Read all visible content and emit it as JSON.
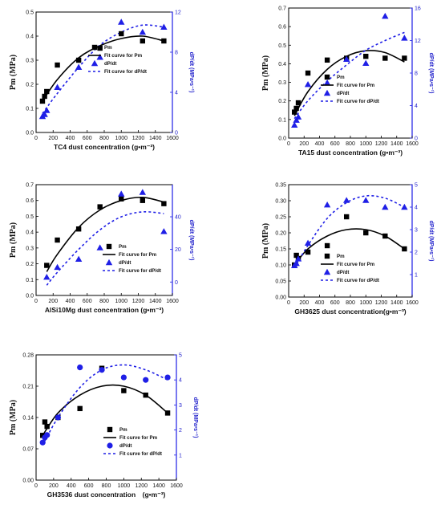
{
  "colors": {
    "pm": "#000000",
    "dpdt": "#1f1fe6"
  },
  "chart_data": [
    {
      "type": "scatter",
      "xlabel": "TC4 dust concentration (g•m⁻³)",
      "ylabel": "Pm (MPa)",
      "y2label": "dP/dt (MPa•s⁻¹)",
      "xlim": [
        0,
        1600
      ],
      "xticks": [
        0,
        200,
        400,
        600,
        800,
        1000,
        1200,
        1400,
        1600
      ],
      "ylim": [
        0,
        0.5
      ],
      "yticks": [
        0.0,
        0.1,
        0.2,
        0.3,
        0.4,
        0.5
      ],
      "y2lim": [
        0,
        12
      ],
      "y2ticks": [
        0,
        4,
        8,
        12
      ],
      "legend": [
        "Pm",
        "Fit curve for Pm",
        "dP/dt",
        "Fit curve for dP/dt"
      ],
      "legend_position": "right",
      "marker2": "triangle",
      "series": [
        {
          "name": "Pm",
          "x": [
            75,
            100,
            125,
            250,
            500,
            750,
            1000,
            1250,
            1500
          ],
          "y": [
            0.13,
            0.15,
            0.17,
            0.28,
            0.3,
            0.35,
            0.41,
            0.38,
            0.38
          ],
          "axis": "left"
        },
        {
          "name": "dP/dt",
          "x": [
            75,
            100,
            125,
            250,
            500,
            750,
            1000,
            1250,
            1500
          ],
          "y": [
            1.6,
            1.8,
            2.2,
            4.5,
            6.5,
            7.5,
            11.0,
            10.0,
            10.5
          ],
          "axis": "right"
        }
      ],
      "fits": [
        {
          "name": "Fit curve for Pm",
          "x": [
            75,
            250,
            500,
            750,
            1000,
            1250,
            1500
          ],
          "y": [
            0.13,
            0.22,
            0.31,
            0.36,
            0.39,
            0.4,
            0.38
          ],
          "axis": "left"
        },
        {
          "name": "Fit curve for dP/dt",
          "x": [
            75,
            250,
            500,
            750,
            1000,
            1250,
            1500
          ],
          "y": [
            1.9,
            3.9,
            6.5,
            8.7,
            10.0,
            10.7,
            10.5
          ],
          "axis": "right"
        }
      ]
    },
    {
      "type": "scatter",
      "xlabel": "TA15 dust concentration (g•m⁻³)",
      "ylabel": "Pm (MPa)",
      "y2label": "dP/dt (MPa•s⁻¹)",
      "xlim": [
        0,
        1600
      ],
      "xticks": [
        0,
        200,
        400,
        600,
        800,
        1000,
        1200,
        1400,
        1600
      ],
      "ylim": [
        0,
        0.7
      ],
      "yticks": [
        0.0,
        0.1,
        0.2,
        0.3,
        0.4,
        0.5,
        0.6,
        0.7
      ],
      "y2lim": [
        0,
        16
      ],
      "y2ticks": [
        0,
        4,
        8,
        12,
        16
      ],
      "legend": [
        "Pm",
        "Fit curve for Pm",
        "dP/dt",
        "Fit curve for dP/dt"
      ],
      "legend_position": "lower-right",
      "marker2": "triangle",
      "series": [
        {
          "name": "Pm",
          "x": [
            75,
            100,
            125,
            250,
            500,
            750,
            1000,
            1250,
            1500
          ],
          "y": [
            0.14,
            0.16,
            0.19,
            0.35,
            0.42,
            0.43,
            0.44,
            0.43,
            0.43
          ],
          "axis": "left"
        },
        {
          "name": "dP/dt",
          "x": [
            75,
            100,
            125,
            250,
            500,
            750,
            1000,
            1250,
            1500
          ],
          "y": [
            1.6,
            2.2,
            2.6,
            6.6,
            6.8,
            9.7,
            9.2,
            15.0,
            12.3
          ],
          "axis": "right"
        }
      ],
      "fits": [
        {
          "name": "Fit curve for Pm",
          "x": [
            75,
            250,
            500,
            750,
            1000,
            1250,
            1500
          ],
          "y": [
            0.12,
            0.25,
            0.37,
            0.44,
            0.47,
            0.46,
            0.41
          ],
          "axis": "left"
        },
        {
          "name": "Fit curve for dP/dt",
          "x": [
            75,
            250,
            500,
            750,
            1000,
            1250,
            1500
          ],
          "y": [
            2.4,
            4.6,
            7.0,
            9.0,
            10.8,
            12.0,
            13.0
          ],
          "axis": "right"
        }
      ]
    },
    {
      "type": "scatter",
      "xlabel": "AlSi10Mg dust concentration (g•m⁻³)",
      "ylabel": "Pm (MPa)",
      "y2label": "dP/dt (MPa•s⁻¹)",
      "xlim": [
        0,
        1600
      ],
      "xticks": [
        0,
        200,
        400,
        600,
        800,
        1000,
        1200,
        1400,
        1600
      ],
      "ylim": [
        0,
        0.7
      ],
      "yticks": [
        0.0,
        0.1,
        0.2,
        0.3,
        0.4,
        0.5,
        0.6,
        0.7
      ],
      "y2lim": [
        -8.24,
        59.7
      ],
      "y2ticks": [
        0,
        20,
        40
      ],
      "legend": [
        "Pm",
        "Fit curve for Pm",
        "dP/dt",
        "Fit curve for dP/dt"
      ],
      "legend_position": "lower-right",
      "marker2": "triangle",
      "series": [
        {
          "name": "Pm",
          "x": [
            125,
            250,
            500,
            750,
            1000,
            1250,
            1500
          ],
          "y": [
            0.19,
            0.35,
            0.42,
            0.56,
            0.61,
            0.6,
            0.58
          ],
          "axis": "left"
        },
        {
          "name": "dP/dt",
          "x": [
            125,
            250,
            500,
            750,
            1000,
            1250,
            1500
          ],
          "y": [
            3,
            9,
            14,
            21,
            54,
            55,
            31
          ],
          "axis": "right"
        }
      ],
      "fits": [
        {
          "name": "Fit curve for Pm",
          "x": [
            125,
            250,
            500,
            750,
            1000,
            1250,
            1500
          ],
          "y": [
            0.15,
            0.26,
            0.43,
            0.54,
            0.6,
            0.62,
            0.59
          ],
          "axis": "left"
        },
        {
          "name": "Fit curve for dP/dt",
          "x": [
            125,
            250,
            500,
            750,
            1000,
            1250,
            1500
          ],
          "y": [
            -2,
            6,
            20,
            32,
            40,
            43,
            42
          ],
          "axis": "right"
        }
      ]
    },
    {
      "type": "scatter",
      "xlabel": "GH3625 dust concentration(g•m⁻³)",
      "ylabel": "Pm (MPa)",
      "y2label": "dP/dt (MPa•s⁻¹)",
      "xlim": [
        0,
        1600
      ],
      "xticks": [
        0,
        200,
        400,
        600,
        800,
        1000,
        1200,
        1400,
        1600
      ],
      "ylim": [
        0,
        0.35
      ],
      "yticks": [
        0.0,
        0.05,
        0.1,
        0.15,
        0.2,
        0.25,
        0.3,
        0.35
      ],
      "y2lim": [
        0,
        5
      ],
      "y2ticks": [
        1,
        2,
        3,
        4,
        5
      ],
      "legend": [
        "Pm",
        "Fit curve for Pm",
        "dP/dt",
        "Fit curve for dP/dt"
      ],
      "legend_position": "lower-right",
      "marker2": "triangle",
      "series": [
        {
          "name": "Pm",
          "x": [
            75,
            100,
            125,
            250,
            500,
            750,
            1000,
            1250,
            1500
          ],
          "y": [
            0.1,
            0.13,
            0.12,
            0.14,
            0.16,
            0.25,
            0.2,
            0.19,
            0.15
          ],
          "axis": "left"
        },
        {
          "name": "dP/dt",
          "x": [
            75,
            100,
            125,
            250,
            500,
            750,
            1000,
            1250,
            1500
          ],
          "y": [
            1.4,
            1.5,
            1.7,
            2.4,
            4.1,
            4.3,
            4.3,
            4.0,
            4.0
          ],
          "axis": "right"
        }
      ],
      "fits": [
        {
          "name": "Fit curve for Pm",
          "x": [
            75,
            250,
            500,
            750,
            1000,
            1250,
            1500
          ],
          "y": [
            0.1,
            0.15,
            0.19,
            0.21,
            0.21,
            0.19,
            0.15
          ],
          "axis": "left"
        },
        {
          "name": "Fit curve for dP/dt",
          "x": [
            75,
            250,
            500,
            750,
            1000,
            1250,
            1500
          ],
          "y": [
            1.3,
            2.3,
            3.5,
            4.2,
            4.5,
            4.4,
            4.0
          ],
          "axis": "right"
        }
      ]
    },
    {
      "type": "scatter",
      "xlabel": "GH3536 dust concentration　(g•m⁻³)",
      "ylabel": "Pm (MPa)",
      "y2label": "dP/dt (MPa•s⁻¹)",
      "xlim": [
        0,
        1600
      ],
      "xticks": [
        0,
        200,
        400,
        600,
        800,
        1000,
        1200,
        1400,
        1600
      ],
      "ylim": [
        0,
        0.28
      ],
      "yticks": [
        0.0,
        0.07,
        0.14,
        0.21,
        0.28
      ],
      "y2lim": [
        0,
        5
      ],
      "y2ticks": [
        1,
        2,
        3,
        4,
        5
      ],
      "legend": [
        "Pm",
        "Fit curve for Pm",
        "dP/dt",
        "Fit curve for dP/dt"
      ],
      "legend_position": "lower-right",
      "marker2": "circle",
      "series": [
        {
          "name": "Pm",
          "x": [
            75,
            100,
            125,
            250,
            500,
            750,
            1000,
            1250,
            1500
          ],
          "y": [
            0.1,
            0.13,
            0.12,
            0.14,
            0.16,
            0.25,
            0.2,
            0.19,
            0.15
          ],
          "axis": "left"
        },
        {
          "name": "dP/dt",
          "x": [
            75,
            100,
            125,
            250,
            500,
            750,
            1000,
            1250,
            1500
          ],
          "y": [
            1.5,
            1.7,
            1.8,
            2.5,
            4.5,
            4.4,
            4.1,
            4.0,
            4.1
          ],
          "axis": "right"
        }
      ],
      "fits": [
        {
          "name": "Fit curve for Pm",
          "x": [
            75,
            250,
            500,
            750,
            1000,
            1250,
            1500
          ],
          "y": [
            0.1,
            0.15,
            0.19,
            0.21,
            0.21,
            0.19,
            0.15
          ],
          "axis": "left"
        },
        {
          "name": "Fit curve for dP/dt",
          "x": [
            75,
            250,
            500,
            750,
            1000,
            1250,
            1500
          ],
          "y": [
            1.4,
            2.5,
            3.7,
            4.4,
            4.6,
            4.4,
            4.0
          ],
          "axis": "right"
        }
      ]
    }
  ]
}
